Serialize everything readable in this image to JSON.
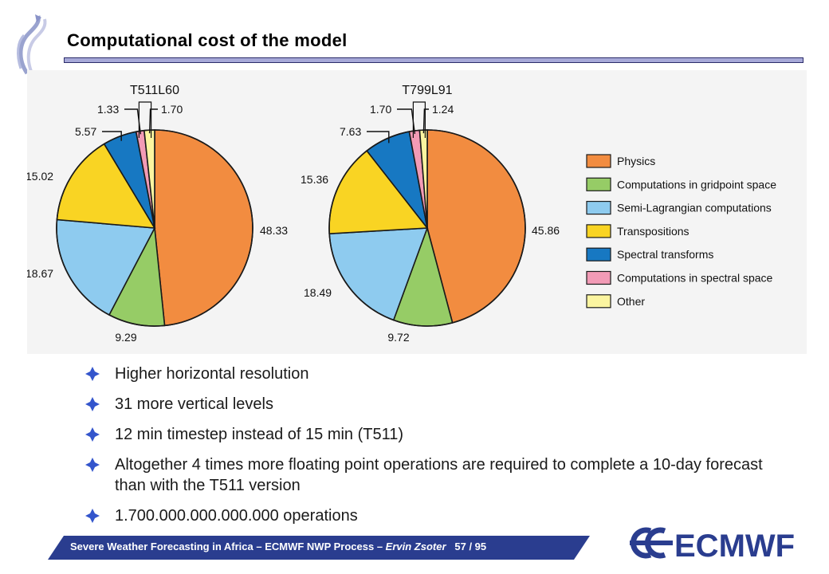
{
  "header": {
    "title": "Computational cost of the model"
  },
  "chart_data": [
    {
      "type": "pie",
      "title": "T511L60",
      "categories": [
        "Physics",
        "Computations in gridpoint space",
        "Semi-Lagrangian computations",
        "Transpositions",
        "Spectral transforms",
        "Computations in spectral space",
        "Other"
      ],
      "values": [
        48.33,
        9.29,
        18.67,
        15.02,
        5.57,
        1.33,
        1.7
      ],
      "labels": [
        "48.33",
        "9.29",
        "18.67",
        "15.02",
        "5.57",
        "1.33",
        "1.70"
      ]
    },
    {
      "type": "pie",
      "title": "T799L91",
      "categories": [
        "Physics",
        "Computations in gridpoint space",
        "Semi-Lagrangian computations",
        "Transpositions",
        "Spectral transforms",
        "Computations in spectral space",
        "Other"
      ],
      "values": [
        45.86,
        9.72,
        18.49,
        15.36,
        7.63,
        1.7,
        1.24
      ],
      "labels": [
        "45.86",
        "9.72",
        "18.49",
        "15.36",
        "7.63",
        "1.70",
        "1.24"
      ]
    }
  ],
  "legend": {
    "placement": "right",
    "items": [
      {
        "label": "Physics",
        "color": "#f28c40"
      },
      {
        "label": "Computations in gridpoint space",
        "color": "#96cc66"
      },
      {
        "label": "Semi-Lagrangian computations",
        "color": "#8ecbef"
      },
      {
        "label": "Transpositions",
        "color": "#f9d423"
      },
      {
        "label": "Spectral transforms",
        "color": "#1778c2"
      },
      {
        "label": "Computations in spectral space",
        "color": "#f29bb6"
      },
      {
        "label": "Other",
        "color": "#fbf5a0"
      }
    ]
  },
  "bullets": [
    "Higher horizontal resolution",
    "31 more vertical levels",
    "12 min timestep instead of 15 min (T511)",
    "Altogether 4 times more floating point operations are required to complete a 10-day forecast than with the T511 version",
    "1.700.000.000.000.000 operations"
  ],
  "footer": {
    "text": "Severe Weather Forecasting in Africa – ECMWF NWP Process – ",
    "author": "Ervin Zsoter",
    "page": "57 / 95",
    "logo_text": "ECMWF"
  },
  "colors": {
    "accent_blue": "#2a3d8f",
    "bullet_blue": "#3355cc"
  }
}
